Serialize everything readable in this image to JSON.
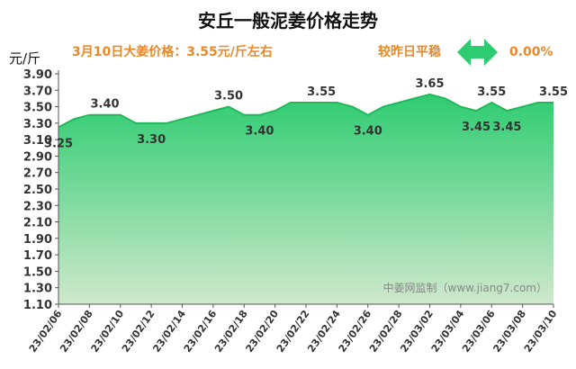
{
  "chart_data": {
    "type": "area",
    "title": "安丘一般泥姜价格走势",
    "price_note": "3月10日大姜价格：3.55元/斤左右",
    "change_label": "较昨日平稳",
    "change_value": "0.00%",
    "ylabel": "元/斤",
    "watermark": "中姜网监制（www.jiang7.com）",
    "ylim": [
      1.1,
      3.9
    ],
    "yticks": [
      "1.10",
      "1.30",
      "1.50",
      "1.70",
      "1.90",
      "2.10",
      "2.30",
      "2.50",
      "2.70",
      "2.90",
      "3.10",
      "3.30",
      "3.50",
      "3.70",
      "3.90"
    ],
    "grid": false,
    "x": [
      "23/02/06",
      "23/02/07",
      "23/02/08",
      "23/02/09",
      "23/02/10",
      "23/02/11",
      "23/02/12",
      "23/02/13",
      "23/02/14",
      "23/02/15",
      "23/02/16",
      "23/02/17",
      "23/02/18",
      "23/02/19",
      "23/02/20",
      "23/02/21",
      "23/02/22",
      "23/02/23",
      "23/02/24",
      "23/02/25",
      "23/02/26",
      "23/02/27",
      "23/02/28",
      "23/03/01",
      "23/03/02",
      "23/03/03",
      "23/03/04",
      "23/03/05",
      "23/03/06",
      "23/03/07",
      "23/03/08",
      "23/03/09",
      "23/03/10"
    ],
    "xtick_labels": [
      "23/02/06",
      "23/02/08",
      "23/02/10",
      "23/02/12",
      "23/02/14",
      "23/02/16",
      "23/02/18",
      "23/02/20",
      "23/02/22",
      "23/02/24",
      "23/02/26",
      "23/02/28",
      "23/03/02",
      "23/03/04",
      "23/03/06",
      "23/03/08",
      "23/03/10"
    ],
    "series": [
      {
        "values": [
          3.25,
          3.35,
          3.4,
          3.4,
          3.4,
          3.3,
          3.3,
          3.3,
          3.35,
          3.4,
          3.45,
          3.5,
          3.4,
          3.4,
          3.45,
          3.55,
          3.55,
          3.55,
          3.55,
          3.5,
          3.4,
          3.5,
          3.55,
          3.6,
          3.65,
          3.6,
          3.5,
          3.45,
          3.55,
          3.45,
          3.5,
          3.55,
          3.55
        ]
      }
    ],
    "data_labels": [
      {
        "x": "23/02/06",
        "text": "3.25",
        "pos": "below"
      },
      {
        "x": "23/02/09",
        "text": "3.40",
        "pos": "above"
      },
      {
        "x": "23/02/12",
        "text": "3.30",
        "pos": "below"
      },
      {
        "x": "23/02/17",
        "text": "3.50",
        "pos": "above"
      },
      {
        "x": "23/02/19",
        "text": "3.40",
        "pos": "below"
      },
      {
        "x": "23/02/23",
        "text": "3.55",
        "pos": "above"
      },
      {
        "x": "23/02/26",
        "text": "3.40",
        "pos": "below"
      },
      {
        "x": "23/03/02",
        "text": "3.65",
        "pos": "above"
      },
      {
        "x": "23/03/05",
        "text": "3.45",
        "pos": "below"
      },
      {
        "x": "23/03/06",
        "text": "3.55",
        "pos": "above"
      },
      {
        "x": "23/03/07",
        "text": "3.45",
        "pos": "below"
      },
      {
        "x": "23/03/10",
        "text": "3.55",
        "pos": "above"
      }
    ],
    "colors": {
      "title": "#111111",
      "note": "#e8892a",
      "change": "#e8892a",
      "arrow": "#2ecc71",
      "line": "#22b85a",
      "fill_top": "#2ecc71",
      "fill_bottom": "#cfe8cc",
      "axis": "#555555",
      "text": "#333333",
      "watermark": "#888888"
    }
  }
}
